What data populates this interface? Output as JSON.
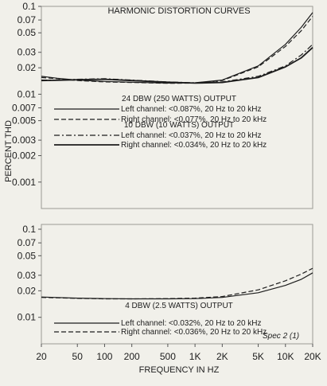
{
  "chart_data": {
    "type": "line",
    "title": "HARMONIC DISTORTION CURVES",
    "xlabel": "FREQUENCY IN HZ",
    "ylabel": "PERCENT THD",
    "xscale": "log",
    "yscale": "log",
    "xlim": [
      20,
      20000
    ],
    "x_ticks": [
      {
        "value": 20,
        "label": "20"
      },
      {
        "value": 50,
        "label": "50"
      },
      {
        "value": 100,
        "label": "100"
      },
      {
        "value": 200,
        "label": "200"
      },
      {
        "value": 500,
        "label": "500"
      },
      {
        "value": 1000,
        "label": "1K"
      },
      {
        "value": 2000,
        "label": "2K"
      },
      {
        "value": 5000,
        "label": "5K"
      },
      {
        "value": 10000,
        "label": "10K"
      },
      {
        "value": 20000,
        "label": "20K"
      }
    ],
    "grid": false,
    "annotation": "Spec 2 (1)",
    "panels": [
      {
        "ylim": [
          0.0005,
          0.1
        ],
        "y_ticks": [
          {
            "value": 0.1,
            "label": "0.1"
          },
          {
            "value": 0.07,
            "label": "0.07"
          },
          {
            "value": 0.05,
            "label": "0.05"
          },
          {
            "value": 0.03,
            "label": "0.03"
          },
          {
            "value": 0.02,
            "label": "0.02"
          },
          {
            "value": 0.01,
            "label": "0.01"
          },
          {
            "value": 0.007,
            "label": "0.007"
          },
          {
            "value": 0.005,
            "label": "0.005"
          },
          {
            "value": 0.003,
            "label": "0.003"
          },
          {
            "value": 0.002,
            "label": "0.002"
          },
          {
            "value": 0.001,
            "label": "0.001"
          }
        ],
        "legend_groups": [
          {
            "heading": "24 DBW (250 WATTS) OUTPUT",
            "series": [
              {
                "name": "Left channel: <0.087%, 20 Hz to 20 kHz",
                "style": "solid",
                "x": [
                  20,
                  30,
                  50,
                  100,
                  200,
                  500,
                  1000,
                  2000,
                  5000,
                  10000,
                  15000,
                  20000
                ],
                "y": [
                  0.016,
                  0.0152,
                  0.0145,
                  0.014,
                  0.0137,
                  0.0134,
                  0.0135,
                  0.0145,
                  0.021,
                  0.037,
                  0.058,
                  0.085
                ]
              },
              {
                "name": "Right channel: <0.077%, 20 Hz to 20 kHz",
                "style": "dashed",
                "x": [
                  20,
                  30,
                  50,
                  100,
                  200,
                  500,
                  1000,
                  2000,
                  5000,
                  10000,
                  15000,
                  20000
                ],
                "y": [
                  0.0155,
                  0.015,
                  0.0143,
                  0.0138,
                  0.0136,
                  0.0133,
                  0.0134,
                  0.0143,
                  0.0205,
                  0.035,
                  0.053,
                  0.077
                ]
              }
            ]
          },
          {
            "heading": "10 DBW (10 WATTS) OUTPUT",
            "series": [
              {
                "name": "Left channel: <0.037%, 20 Hz to 20 kHz",
                "style": "dashdot",
                "x": [
                  20,
                  30,
                  50,
                  100,
                  200,
                  500,
                  1000,
                  2000,
                  5000,
                  10000,
                  15000,
                  20000
                ],
                "y": [
                  0.0145,
                  0.0145,
                  0.0148,
                  0.015,
                  0.0145,
                  0.0138,
                  0.0135,
                  0.0138,
                  0.016,
                  0.021,
                  0.028,
                  0.037
                ]
              },
              {
                "name": "Right channel: <0.034%, 20 Hz to 20 kHz",
                "style": "solid-bold",
                "x": [
                  20,
                  30,
                  50,
                  100,
                  200,
                  500,
                  1000,
                  2000,
                  5000,
                  10000,
                  15000,
                  20000
                ],
                "y": [
                  0.0143,
                  0.0144,
                  0.0146,
                  0.0148,
                  0.0143,
                  0.0137,
                  0.0134,
                  0.0136,
                  0.0155,
                  0.0205,
                  0.026,
                  0.034
                ]
              }
            ]
          }
        ]
      },
      {
        "ylim": [
          0.005,
          0.1
        ],
        "y_ticks": [
          {
            "value": 0.1,
            "label": "0.1"
          },
          {
            "value": 0.07,
            "label": "0.07"
          },
          {
            "value": 0.05,
            "label": "0.05"
          },
          {
            "value": 0.03,
            "label": "0.03"
          },
          {
            "value": 0.02,
            "label": "0.02"
          },
          {
            "value": 0.01,
            "label": "0.01"
          }
        ],
        "legend_groups": [
          {
            "heading": "4 DBW (2.5 WATTS) OUTPUT",
            "series": [
              {
                "name": "Left channel: <0.032%, 20 Hz to 20 kHz",
                "style": "solid",
                "x": [
                  20,
                  50,
                  100,
                  200,
                  500,
                  1000,
                  2000,
                  5000,
                  10000,
                  15000,
                  20000
                ],
                "y": [
                  0.017,
                  0.0165,
                  0.0163,
                  0.0162,
                  0.0162,
                  0.0163,
                  0.0168,
                  0.019,
                  0.023,
                  0.027,
                  0.032
                ]
              },
              {
                "name": "Right channel: <0.036%, 20 Hz to 20 kHz",
                "style": "dashed",
                "x": [
                  20,
                  50,
                  100,
                  200,
                  500,
                  1000,
                  2000,
                  5000,
                  10000,
                  15000,
                  20000
                ],
                "y": [
                  0.0168,
                  0.0164,
                  0.0162,
                  0.0162,
                  0.0163,
                  0.0165,
                  0.0172,
                  0.0205,
                  0.026,
                  0.031,
                  0.036
                ]
              }
            ]
          }
        ]
      }
    ]
  }
}
